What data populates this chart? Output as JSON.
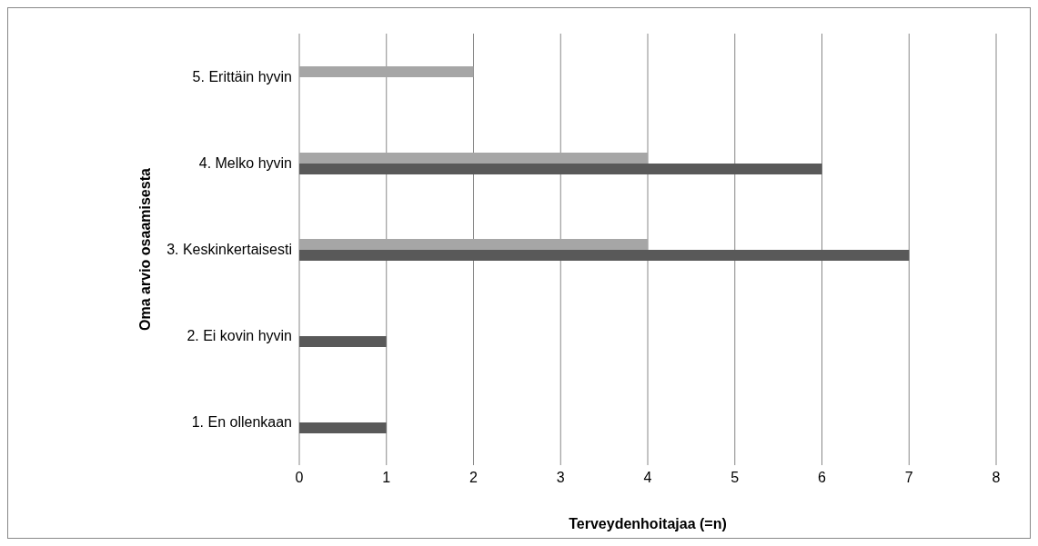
{
  "chart_data": {
    "type": "bar",
    "orientation": "horizontal",
    "xlabel": "Terveydenhoitajaa (=n)",
    "ylabel": "Oma arvio osaamisesta",
    "categories": [
      "5. Erittäin hyvin",
      "4. Melko hyvin",
      "3.  Keskinkertaisesti",
      "2. Ei kovin hyvin",
      "1. En ollenkaan"
    ],
    "series": [
      {
        "color": "#a6a6a6",
        "values": [
          2,
          4,
          4,
          0,
          0
        ]
      },
      {
        "color": "#595959",
        "values": [
          0,
          6,
          7,
          1,
          1
        ]
      }
    ],
    "xlim": [
      0,
      8
    ],
    "xticks": [
      0,
      1,
      2,
      3,
      4,
      5,
      6,
      7,
      8
    ],
    "grid": "x",
    "legend": false
  }
}
